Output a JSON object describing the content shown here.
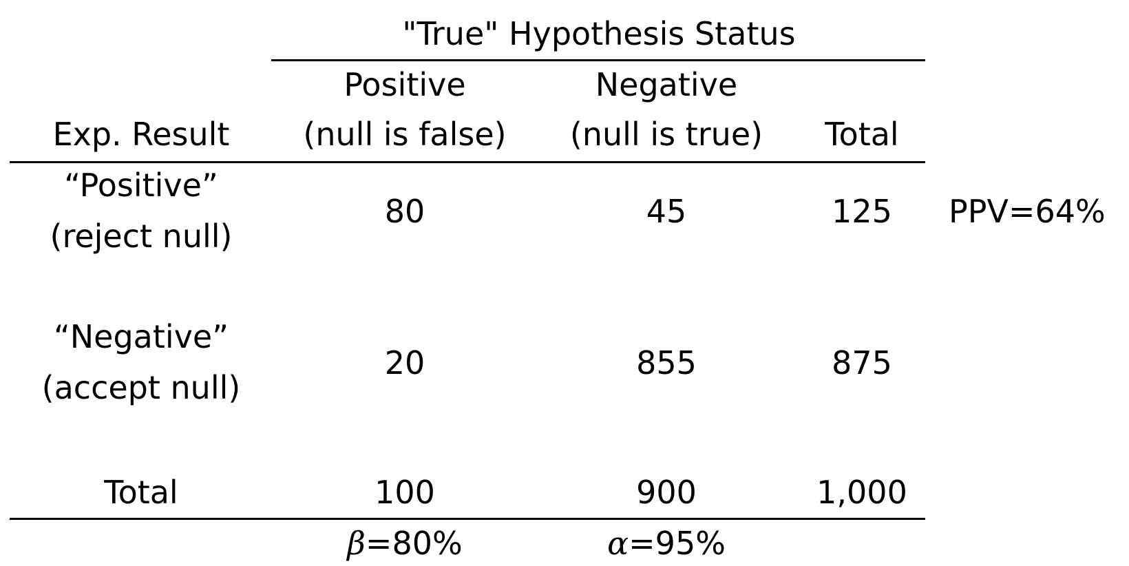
{
  "table": {
    "spanner": "\"True\" Hypothesis Status",
    "headers": {
      "row_label": "Exp. Result",
      "col_positive_line1": "Positive",
      "col_positive_line2": "(null is false)",
      "col_negative_line1": "Negative",
      "col_negative_line2": "(null is true)",
      "col_total": "Total"
    },
    "rows": [
      {
        "label_line1": "“Positive”",
        "label_line2": "(reject null)",
        "positive": "80",
        "negative": "45",
        "total": "125",
        "note": "PPV=64%"
      },
      {
        "label_line1": "“Negative”",
        "label_line2": "(accept null)",
        "positive": "20",
        "negative": "855",
        "total": "875"
      }
    ],
    "totals_row": {
      "label": "Total",
      "positive": "100",
      "negative": "900",
      "total": "1,000"
    },
    "footer": {
      "beta_symbol": "β",
      "beta_value": "=80%",
      "alpha_symbol": "α",
      "alpha_value": "=95%"
    }
  }
}
